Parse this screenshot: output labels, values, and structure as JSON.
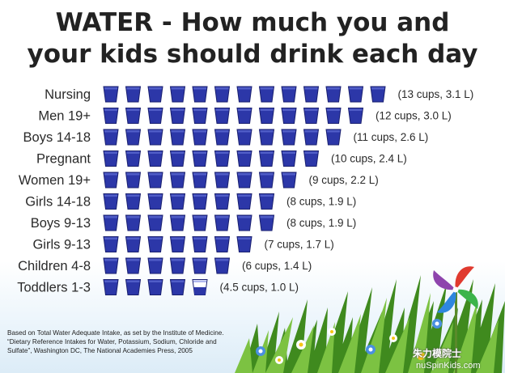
{
  "title_line1": "WATER - How much you and",
  "title_line2": "your kids should drink each day",
  "chart_data": {
    "type": "pictogram-bar",
    "unit": "cups",
    "title": "WATER - How much you and your kids should drink each day",
    "categories": [
      "Nursing",
      "Men 19+",
      "Boys 14-18",
      "Pregnant",
      "Women 19+",
      "Girls 14-18",
      "Boys 9-13",
      "Girls 9-13",
      "Children 4-8",
      "Toddlers 1-3"
    ],
    "values": [
      13,
      12,
      11,
      10,
      9,
      8,
      8,
      7,
      6,
      4.5
    ],
    "value_labels": [
      "(13 cups, 3.1 L)",
      "(12 cups, 3.0 L)",
      "(11 cups, 2.6 L)",
      "(10 cups, 2.4 L)",
      "(9 cups, 2.2 L)",
      "(8 cups, 1.9 L)",
      "(8 cups, 1.9 L)",
      "(7 cups, 1.7 L)",
      "(6 cups, 1.4 L)",
      "(4.5 cups, 1.0 L)"
    ],
    "colors": {
      "cup_fill": "#2c37a8",
      "cup_outline": "#1a2070",
      "cup_empty": "#ffffff"
    }
  },
  "footnote": {
    "line1": "Based on Total Water Adequate Intake, as set by the Institute of Medicine.",
    "line2": "“Dietary Reference Intakes for Water, Potassium, Sodium, Chloride and",
    "line3": "Sulfate”, Washington DC, The National Academies Press, 2005"
  },
  "watermark": "朱力模院士",
  "brand": "nuSpinKids.com",
  "colors": {
    "grass_dark": "#3f8a1e",
    "grass_light": "#7cc242",
    "sky": "#dcecf7"
  }
}
